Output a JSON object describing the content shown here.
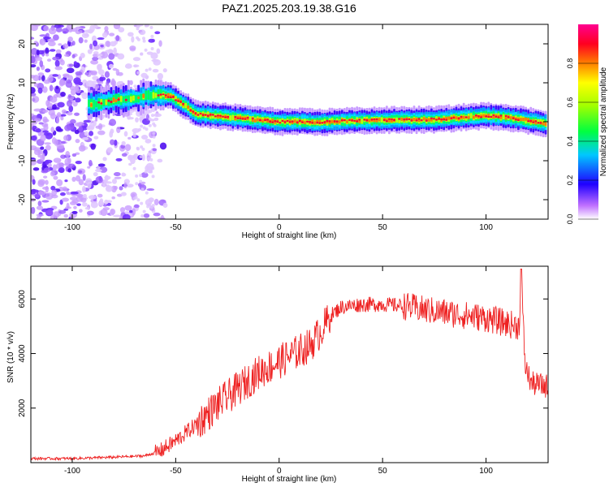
{
  "title": "PAZ1.2025.203.19.38.G16",
  "spectrogram": {
    "xlabel": "Height of straight line (km)",
    "ylabel": "Frequency (Hz)",
    "xlim": [
      -120,
      130
    ],
    "ylim": [
      -25,
      25
    ],
    "xticks": [
      -100,
      -50,
      0,
      50,
      100
    ],
    "yticks": [
      -20,
      -10,
      0,
      10,
      20
    ],
    "colorbar": {
      "label": "Normalized spectral amplitude",
      "range": [
        0,
        1
      ],
      "ticks": [
        "0.0",
        "0.2",
        "0.4",
        "0.6",
        "0.8"
      ]
    },
    "ridge": [
      {
        "x": -90,
        "f": 4.5
      },
      {
        "x": -80,
        "f": 5.5
      },
      {
        "x": -70,
        "f": 6
      },
      {
        "x": -60,
        "f": 7
      },
      {
        "x": -52,
        "f": 6.5
      },
      {
        "x": -45,
        "f": 4
      },
      {
        "x": -40,
        "f": 2
      },
      {
        "x": -30,
        "f": 1.5
      },
      {
        "x": -20,
        "f": 1
      },
      {
        "x": -10,
        "f": 0.5
      },
      {
        "x": 0,
        "f": 0
      },
      {
        "x": 10,
        "f": 0
      },
      {
        "x": 20,
        "f": -0.2
      },
      {
        "x": 30,
        "f": 0.2
      },
      {
        "x": 40,
        "f": 0.3
      },
      {
        "x": 50,
        "f": 0.4
      },
      {
        "x": 60,
        "f": 0.5
      },
      {
        "x": 70,
        "f": 0.5
      },
      {
        "x": 80,
        "f": 0.7
      },
      {
        "x": 90,
        "f": 1.2
      },
      {
        "x": 100,
        "f": 1.5
      },
      {
        "x": 110,
        "f": 1.2
      },
      {
        "x": 120,
        "f": 0.3
      },
      {
        "x": 130,
        "f": -0.5
      }
    ]
  },
  "snr": {
    "type": "line",
    "xlabel": "Height of straight line (km)",
    "ylabel": "SNR (10 * v/v)",
    "xlim": [
      -120,
      130
    ],
    "ylim": [
      0,
      7200
    ],
    "xticks": [
      -100,
      -50,
      0,
      50,
      100
    ],
    "yticks": [
      2000,
      4000,
      6000
    ],
    "color": "#ee2222",
    "series": [
      {
        "x": -120,
        "y": 150
      },
      {
        "x": -100,
        "y": 150
      },
      {
        "x": -80,
        "y": 200
      },
      {
        "x": -65,
        "y": 250
      },
      {
        "x": -58,
        "y": 400
      },
      {
        "x": -50,
        "y": 800
      },
      {
        "x": -40,
        "y": 1400
      },
      {
        "x": -30,
        "y": 2100
      },
      {
        "x": -20,
        "y": 2700
      },
      {
        "x": -10,
        "y": 3300
      },
      {
        "x": 0,
        "y": 3700
      },
      {
        "x": 10,
        "y": 4100
      },
      {
        "x": 15,
        "y": 4300
      },
      {
        "x": 20,
        "y": 4800
      },
      {
        "x": 25,
        "y": 5400
      },
      {
        "x": 30,
        "y": 5700
      },
      {
        "x": 40,
        "y": 5800
      },
      {
        "x": 50,
        "y": 5800
      },
      {
        "x": 60,
        "y": 5750
      },
      {
        "x": 70,
        "y": 5600
      },
      {
        "x": 80,
        "y": 5500
      },
      {
        "x": 90,
        "y": 5400
      },
      {
        "x": 100,
        "y": 5300
      },
      {
        "x": 110,
        "y": 5100
      },
      {
        "x": 116,
        "y": 5000
      },
      {
        "x": 117,
        "y": 7100
      },
      {
        "x": 118,
        "y": 5000
      },
      {
        "x": 119,
        "y": 3500
      },
      {
        "x": 122,
        "y": 2900
      },
      {
        "x": 130,
        "y": 2800
      }
    ]
  }
}
